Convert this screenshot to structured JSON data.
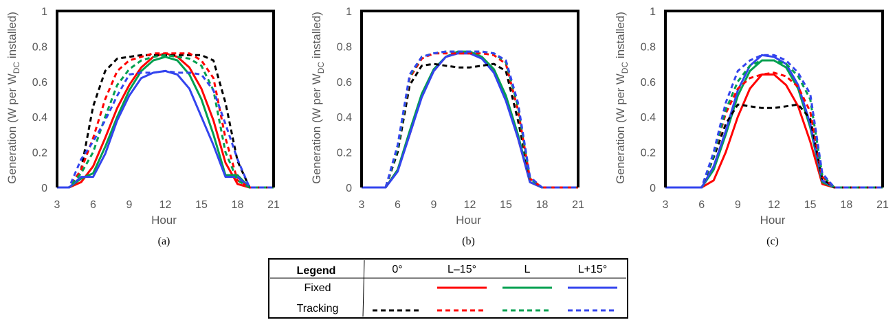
{
  "colors": {
    "tilt_0": "#000000",
    "tilt_l_minus_15": "#ff0000",
    "tilt_l": "#00a050",
    "tilt_l_plus_15": "#3344ee",
    "axis_text": "#595959"
  },
  "legend": {
    "title": "Legend",
    "columns": [
      "0°",
      "L–15°",
      "L",
      "L+15°"
    ],
    "rows": [
      {
        "label": "Fixed",
        "style": "solid",
        "columns": [
          "L–15°",
          "L",
          "L+15°"
        ]
      },
      {
        "label": "Tracking",
        "style": "dashed",
        "columns": [
          "0°",
          "L–15°",
          "L",
          "L+15°"
        ]
      }
    ]
  },
  "chart_data": [
    {
      "type": "line",
      "panel_label": "(a)",
      "xlabel": "Hour",
      "ylabel_parts": [
        "Generation (W per W",
        "DC",
        " installed)"
      ],
      "xlim": [
        3,
        21
      ],
      "ylim": [
        0,
        1
      ],
      "xticks": [
        "3",
        "6",
        "9",
        "12",
        "15",
        "18",
        "21"
      ],
      "yticks": [
        "0",
        "0.2",
        "0.4",
        "0.6",
        "0.8",
        "1"
      ],
      "x": [
        3,
        4,
        5,
        6,
        7,
        8,
        9,
        10,
        11,
        12,
        13,
        14,
        15,
        16,
        17,
        18,
        19,
        20,
        21
      ],
      "series": [
        {
          "tilt": "L–15°",
          "mode": "Fixed",
          "color": "#ff0000",
          "style": "solid",
          "values": [
            0,
            0,
            0.03,
            0.12,
            0.28,
            0.45,
            0.58,
            0.68,
            0.74,
            0.76,
            0.74,
            0.68,
            0.56,
            0.38,
            0.14,
            0.02,
            0,
            0,
            0
          ]
        },
        {
          "tilt": "L",
          "mode": "Fixed",
          "color": "#00a050",
          "style": "solid",
          "values": [
            0,
            0,
            0.05,
            0.08,
            0.23,
            0.4,
            0.55,
            0.66,
            0.72,
            0.74,
            0.72,
            0.64,
            0.5,
            0.3,
            0.07,
            0.07,
            0,
            0,
            0
          ]
        },
        {
          "tilt": "L+15°",
          "mode": "Fixed",
          "color": "#3344ee",
          "style": "solid",
          "values": [
            0,
            0,
            0.06,
            0.06,
            0.19,
            0.38,
            0.52,
            0.62,
            0.65,
            0.66,
            0.64,
            0.56,
            0.4,
            0.24,
            0.06,
            0.06,
            0,
            0,
            0
          ]
        },
        {
          "tilt": "0°",
          "mode": "Tracking",
          "color": "#000000",
          "style": "dashed",
          "values": [
            0,
            0,
            0.1,
            0.46,
            0.66,
            0.73,
            0.74,
            0.75,
            0.75,
            0.75,
            0.75,
            0.75,
            0.75,
            0.72,
            0.48,
            0.15,
            0,
            0,
            0
          ]
        },
        {
          "tilt": "L–15°",
          "mode": "Tracking",
          "color": "#ff0000",
          "style": "dashed",
          "values": [
            0,
            0,
            0.1,
            0.28,
            0.5,
            0.66,
            0.72,
            0.74,
            0.76,
            0.76,
            0.76,
            0.76,
            0.72,
            0.62,
            0.28,
            0.04,
            0,
            0,
            0
          ]
        },
        {
          "tilt": "L",
          "mode": "Tracking",
          "color": "#00a050",
          "style": "dashed",
          "values": [
            0,
            0,
            0.08,
            0.2,
            0.4,
            0.58,
            0.67,
            0.72,
            0.74,
            0.75,
            0.74,
            0.73,
            0.69,
            0.55,
            0.2,
            0.04,
            0,
            0,
            0
          ]
        },
        {
          "tilt": "L+15°",
          "mode": "Tracking",
          "color": "#3344ee",
          "style": "dashed",
          "values": [
            0,
            0,
            0.16,
            0.26,
            0.38,
            0.52,
            0.64,
            0.65,
            0.65,
            0.66,
            0.65,
            0.65,
            0.64,
            0.55,
            0.36,
            0.16,
            0,
            0,
            0
          ]
        }
      ]
    },
    {
      "type": "line",
      "panel_label": "(b)",
      "xlabel": "Hour",
      "ylabel_parts": [
        "Generation (W per W",
        "DC",
        " installed)"
      ],
      "xlim": [
        3,
        21
      ],
      "ylim": [
        0,
        1
      ],
      "xticks": [
        "3",
        "6",
        "9",
        "12",
        "15",
        "18",
        "21"
      ],
      "yticks": [
        "0",
        "0.2",
        "0.4",
        "0.6",
        "0.8",
        "1"
      ],
      "x": [
        3,
        4,
        5,
        6,
        7,
        8,
        9,
        10,
        11,
        12,
        13,
        14,
        15,
        16,
        17,
        18,
        19,
        20,
        21
      ],
      "series": [
        {
          "tilt": "L–15°",
          "mode": "Fixed",
          "color": "#ff0000",
          "style": "solid",
          "values": [
            0,
            0,
            0,
            0.1,
            0.3,
            0.52,
            0.66,
            0.74,
            0.76,
            0.76,
            0.74,
            0.66,
            0.5,
            0.28,
            0.03,
            0,
            0,
            0,
            0
          ]
        },
        {
          "tilt": "L",
          "mode": "Fixed",
          "color": "#00a050",
          "style": "solid",
          "values": [
            0,
            0,
            0,
            0.1,
            0.32,
            0.53,
            0.67,
            0.74,
            0.77,
            0.77,
            0.74,
            0.67,
            0.52,
            0.3,
            0.03,
            0,
            0,
            0,
            0
          ]
        },
        {
          "tilt": "L+15°",
          "mode": "Fixed",
          "color": "#3344ee",
          "style": "solid",
          "values": [
            0,
            0,
            0,
            0.09,
            0.3,
            0.51,
            0.66,
            0.74,
            0.76,
            0.76,
            0.73,
            0.65,
            0.49,
            0.28,
            0.03,
            0,
            0,
            0,
            0
          ]
        },
        {
          "tilt": "0°",
          "mode": "Tracking",
          "color": "#000000",
          "style": "dashed",
          "values": [
            0,
            0,
            0,
            0.2,
            0.58,
            0.69,
            0.7,
            0.69,
            0.68,
            0.68,
            0.69,
            0.7,
            0.66,
            0.38,
            0.05,
            0,
            0,
            0,
            0
          ]
        },
        {
          "tilt": "L–15°",
          "mode": "Tracking",
          "color": "#ff0000",
          "style": "dashed",
          "values": [
            0,
            0,
            0,
            0.22,
            0.62,
            0.73,
            0.76,
            0.76,
            0.76,
            0.76,
            0.76,
            0.75,
            0.7,
            0.44,
            0.05,
            0,
            0,
            0,
            0
          ]
        },
        {
          "tilt": "L",
          "mode": "Tracking",
          "color": "#00a050",
          "style": "dashed",
          "values": [
            0,
            0,
            0,
            0.22,
            0.63,
            0.74,
            0.76,
            0.77,
            0.77,
            0.77,
            0.77,
            0.76,
            0.71,
            0.46,
            0.05,
            0,
            0,
            0,
            0
          ]
        },
        {
          "tilt": "L+15°",
          "mode": "Tracking",
          "color": "#3344ee",
          "style": "dashed",
          "values": [
            0,
            0,
            0,
            0.24,
            0.64,
            0.74,
            0.76,
            0.77,
            0.77,
            0.77,
            0.77,
            0.76,
            0.72,
            0.48,
            0.06,
            0,
            0,
            0,
            0
          ]
        }
      ]
    },
    {
      "type": "line",
      "panel_label": "(c)",
      "xlabel": "Hour",
      "ylabel_parts": [
        "Generation (W per W",
        "DC",
        " installed)"
      ],
      "xlim": [
        3,
        21
      ],
      "ylim": [
        0,
        1
      ],
      "xticks": [
        "3",
        "6",
        "9",
        "12",
        "15",
        "18",
        "21"
      ],
      "yticks": [
        "0",
        "0.2",
        "0.4",
        "0.6",
        "0.8",
        "1"
      ],
      "x": [
        3,
        4,
        5,
        6,
        7,
        8,
        9,
        10,
        11,
        12,
        13,
        14,
        15,
        16,
        17,
        18,
        19,
        20,
        21
      ],
      "series": [
        {
          "tilt": "L–15°",
          "mode": "Fixed",
          "color": "#ff0000",
          "style": "solid",
          "values": [
            0,
            0,
            0,
            0,
            0.04,
            0.2,
            0.4,
            0.56,
            0.64,
            0.64,
            0.58,
            0.46,
            0.26,
            0.02,
            0,
            0,
            0,
            0,
            0
          ]
        },
        {
          "tilt": "L",
          "mode": "Fixed",
          "color": "#00a050",
          "style": "solid",
          "values": [
            0,
            0,
            0,
            0,
            0.1,
            0.3,
            0.52,
            0.66,
            0.72,
            0.72,
            0.68,
            0.56,
            0.34,
            0.03,
            0,
            0,
            0,
            0,
            0
          ]
        },
        {
          "tilt": "L+15°",
          "mode": "Fixed",
          "color": "#3344ee",
          "style": "solid",
          "values": [
            0,
            0,
            0,
            0,
            0.12,
            0.32,
            0.55,
            0.69,
            0.75,
            0.74,
            0.7,
            0.58,
            0.36,
            0.04,
            0,
            0,
            0,
            0,
            0
          ]
        },
        {
          "tilt": "0°",
          "mode": "Tracking",
          "color": "#000000",
          "style": "dashed",
          "values": [
            0,
            0,
            0,
            0,
            0.17,
            0.36,
            0.47,
            0.46,
            0.45,
            0.45,
            0.46,
            0.47,
            0.39,
            0.05,
            0,
            0,
            0,
            0,
            0
          ]
        },
        {
          "tilt": "L–15°",
          "mode": "Tracking",
          "color": "#ff0000",
          "style": "dashed",
          "values": [
            0,
            0,
            0,
            0,
            0.18,
            0.42,
            0.56,
            0.62,
            0.64,
            0.65,
            0.63,
            0.57,
            0.43,
            0.06,
            0,
            0,
            0,
            0,
            0
          ]
        },
        {
          "tilt": "L",
          "mode": "Tracking",
          "color": "#00a050",
          "style": "dashed",
          "values": [
            0,
            0,
            0,
            0,
            0.18,
            0.44,
            0.6,
            0.69,
            0.72,
            0.72,
            0.7,
            0.63,
            0.5,
            0.07,
            0,
            0,
            0,
            0,
            0
          ]
        },
        {
          "tilt": "L+15°",
          "mode": "Tracking",
          "color": "#3344ee",
          "style": "dashed",
          "values": [
            0,
            0,
            0,
            0,
            0.2,
            0.48,
            0.66,
            0.72,
            0.75,
            0.75,
            0.72,
            0.65,
            0.53,
            0.08,
            0,
            0,
            0,
            0,
            0
          ]
        }
      ]
    }
  ]
}
